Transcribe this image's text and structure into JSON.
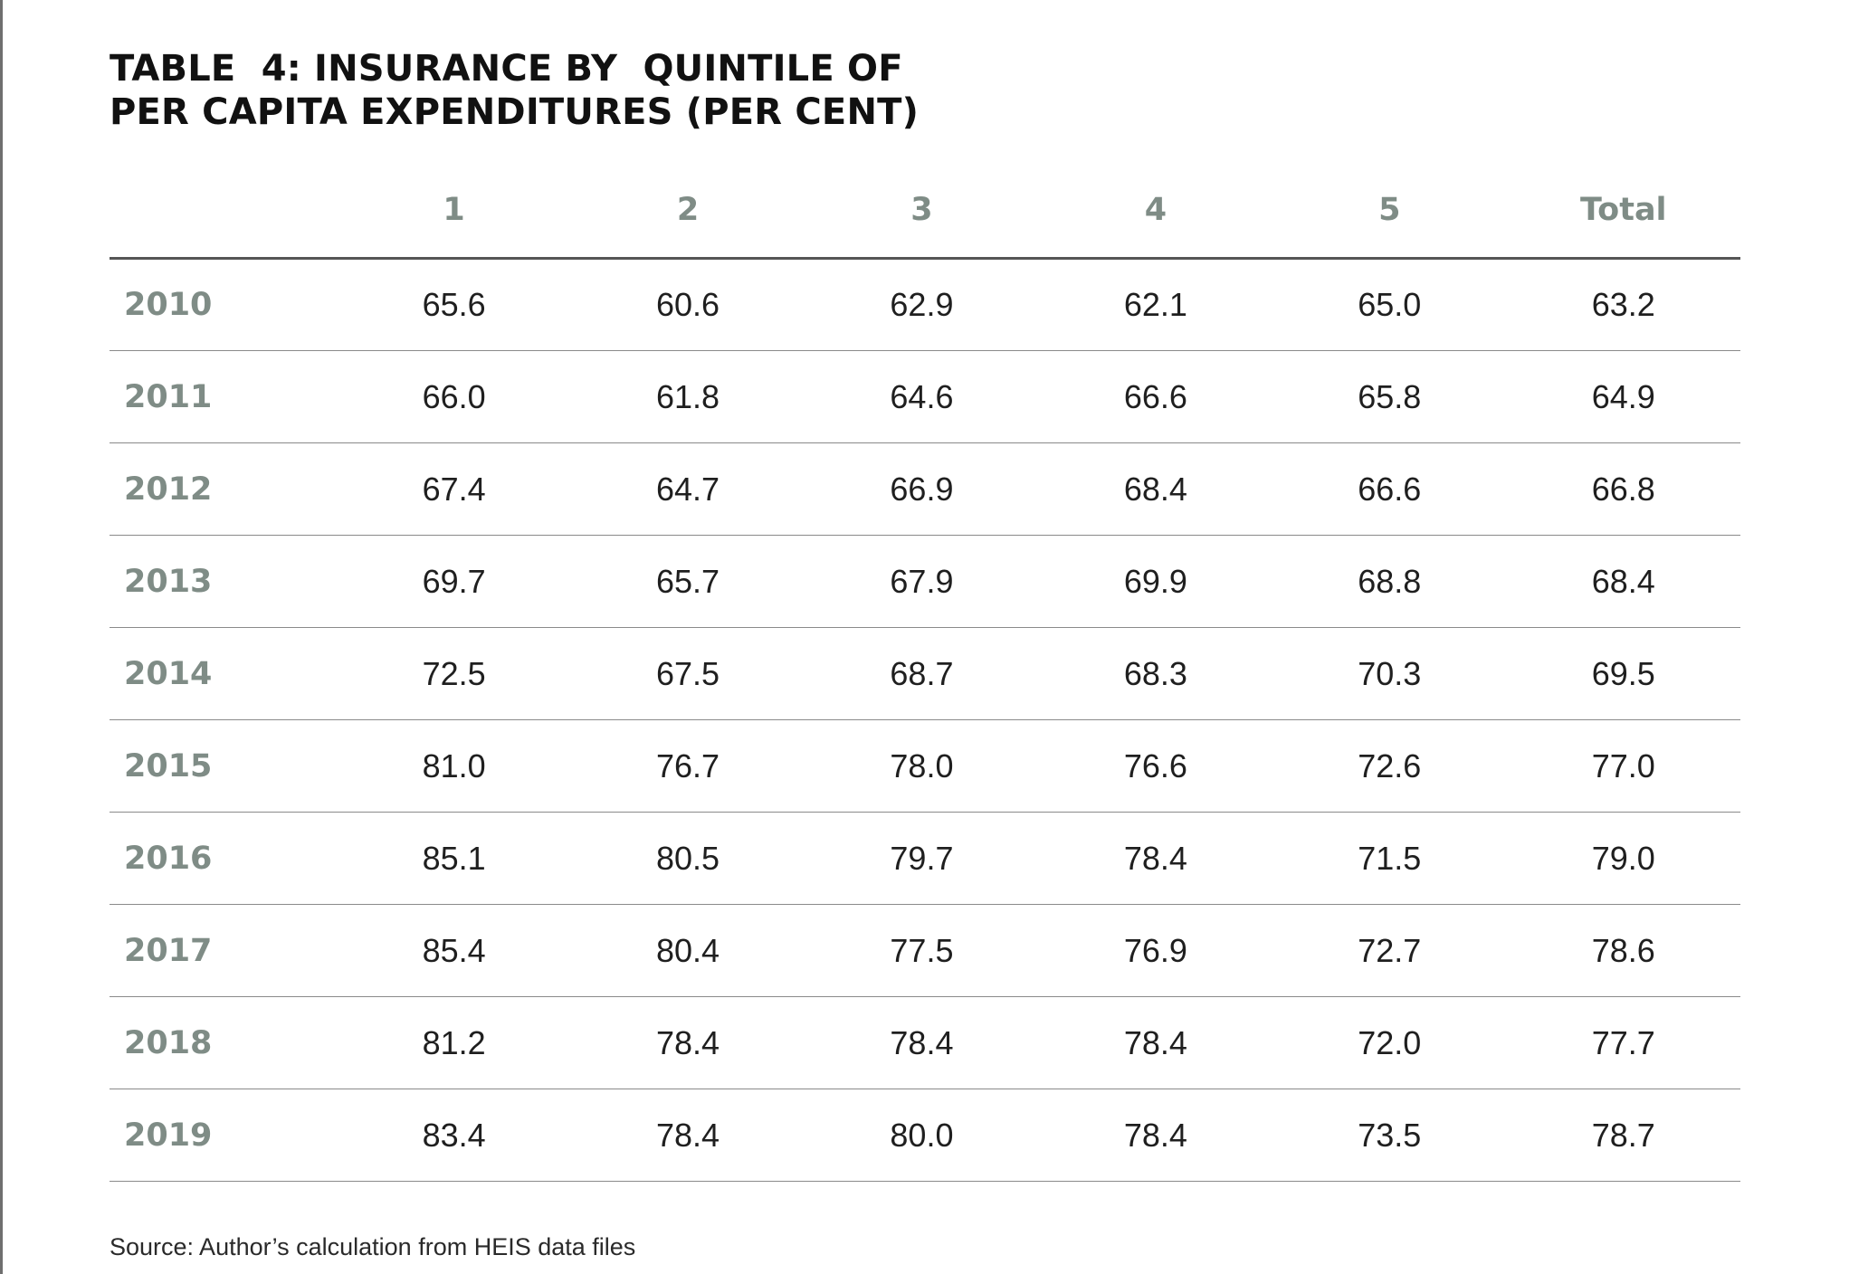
{
  "title": {
    "line1": "TABLE  4: INSURANCE BY  QUINTILE OF",
    "line2": "PER CAPITA EXPENDITURES (PER CENT)"
  },
  "table": {
    "headers": [
      "",
      "1",
      "2",
      "3",
      "4",
      "5",
      "Total"
    ],
    "rows": [
      {
        "year": "2010",
        "values": [
          "65.6",
          "60.6",
          "62.9",
          "62.1",
          "65.0",
          "63.2"
        ]
      },
      {
        "year": "2011",
        "values": [
          "66.0",
          "61.8",
          "64.6",
          "66.6",
          "65.8",
          "64.9"
        ]
      },
      {
        "year": "2012",
        "values": [
          "67.4",
          "64.7",
          "66.9",
          "68.4",
          "66.6",
          "66.8"
        ]
      },
      {
        "year": "2013",
        "values": [
          "69.7",
          "65.7",
          "67.9",
          "69.9",
          "68.8",
          "68.4"
        ]
      },
      {
        "year": "2014",
        "values": [
          "72.5",
          "67.5",
          "68.7",
          "68.3",
          "70.3",
          "69.5"
        ]
      },
      {
        "year": "2015",
        "values": [
          "81.0",
          "76.7",
          "78.0",
          "76.6",
          "72.6",
          "77.0"
        ]
      },
      {
        "year": "2016",
        "values": [
          "85.1",
          "80.5",
          "79.7",
          "78.4",
          "71.5",
          "79.0"
        ]
      },
      {
        "year": "2017",
        "values": [
          "85.4",
          "80.4",
          "77.5",
          "76.9",
          "72.7",
          "78.6"
        ]
      },
      {
        "year": "2018",
        "values": [
          "81.2",
          "78.4",
          "78.4",
          "78.4",
          "72.0",
          "77.7"
        ]
      },
      {
        "year": "2019",
        "values": [
          "83.4",
          "78.4",
          "80.0",
          "78.4",
          "73.5",
          "78.7"
        ]
      }
    ]
  },
  "source": "Source: Author’s calculation from HEIS data files",
  "colors": {
    "header_text": "#7f8c86",
    "body_text": "#1f1f1f",
    "rule": "#555555"
  }
}
